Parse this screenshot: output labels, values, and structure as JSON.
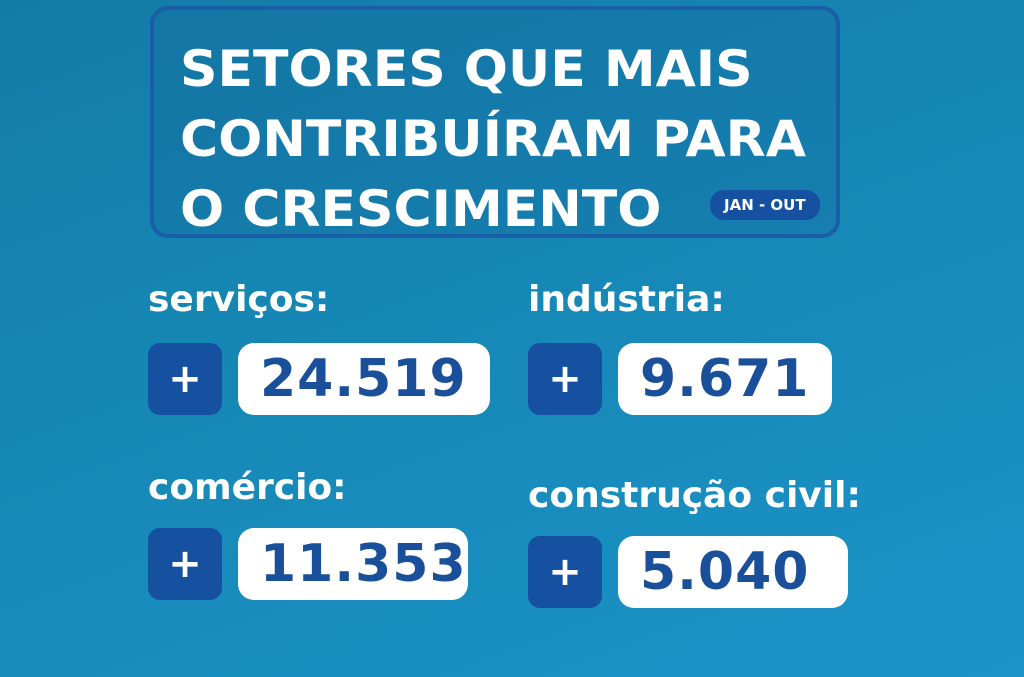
{
  "title": {
    "lines": [
      "SETORES QUE MAIS",
      "CONTRIBUÍRAM PARA",
      "O CRESCIMENTO"
    ],
    "period": "JAN - OUT"
  },
  "sectors": [
    {
      "label": "serviços:",
      "sign": "+",
      "value": "24.519"
    },
    {
      "label": "indústria:",
      "sign": "+",
      "value": "9.671"
    },
    {
      "label": "comércio:",
      "sign": "+",
      "value": "11.353"
    },
    {
      "label": "construção civil:",
      "sign": "+",
      "value": "5.040"
    }
  ],
  "colors": {
    "accent": "#1650a0",
    "number": "#1a4f9a",
    "background": "#1688b6"
  }
}
